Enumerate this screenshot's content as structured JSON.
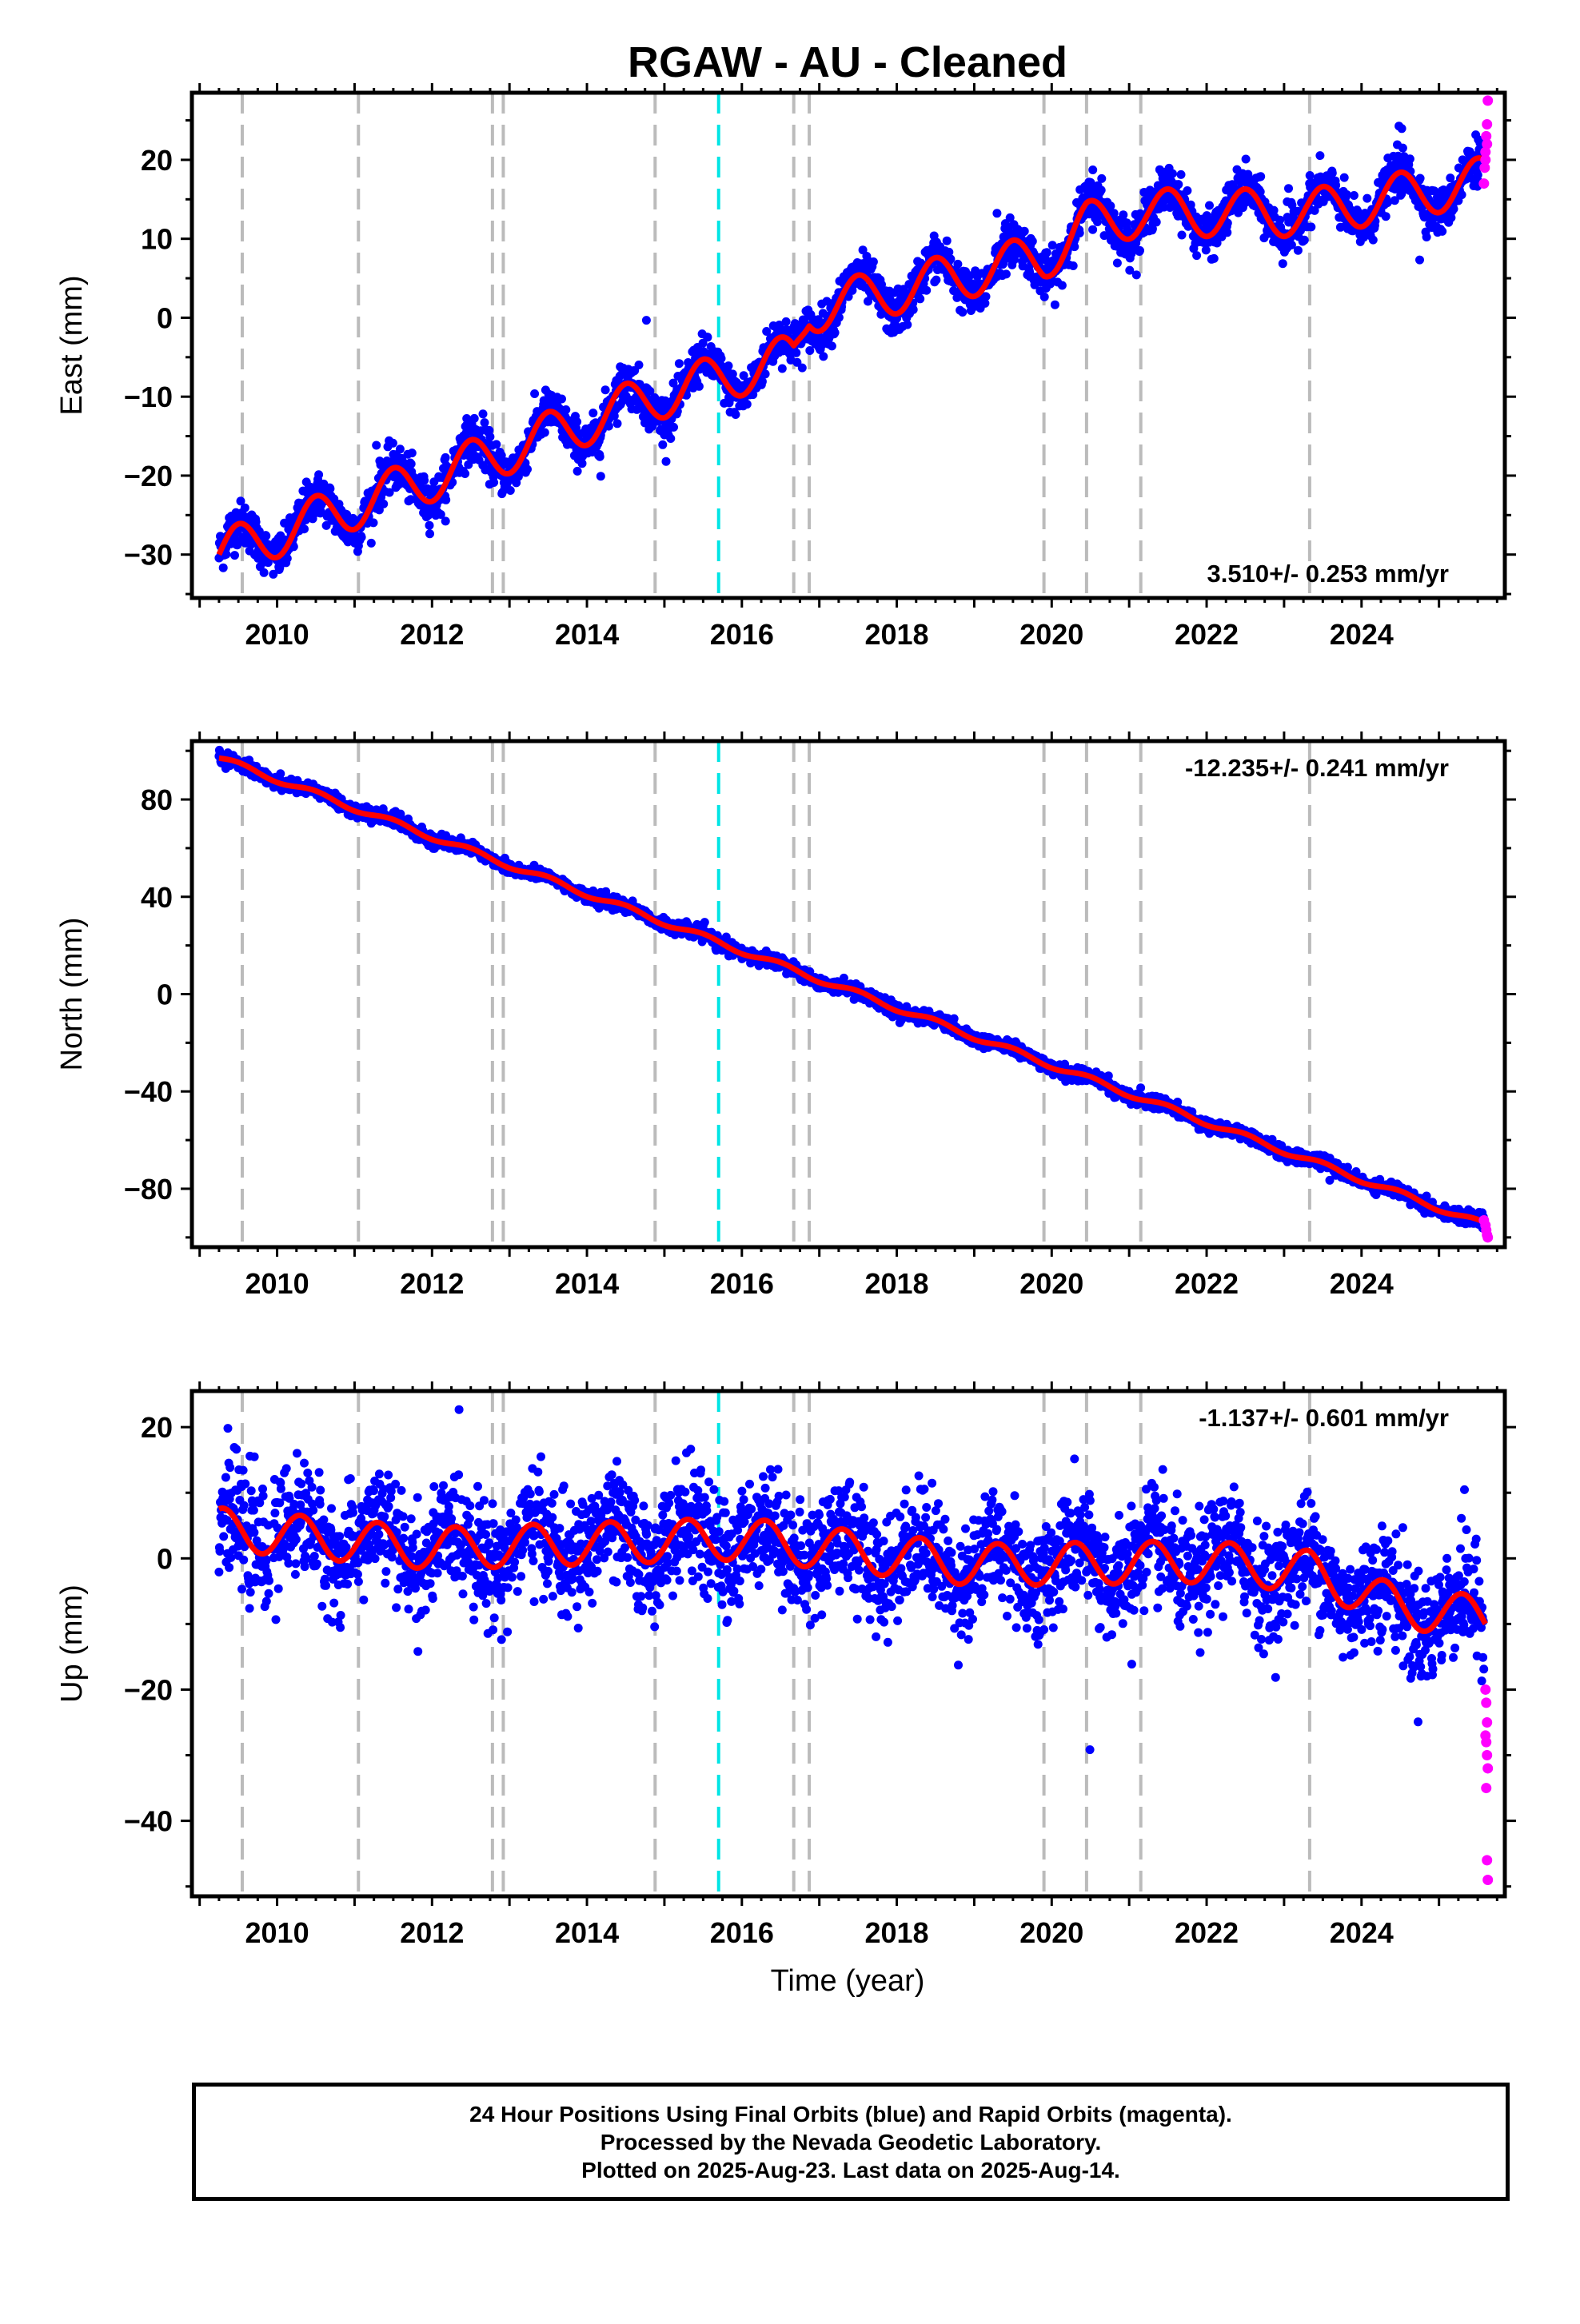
{
  "title": "RGAW  - AU - Cleaned",
  "xlabel": "Time (year)",
  "footer": {
    "line1": "24 Hour Positions Using Final Orbits (blue) and Rapid Orbits (magenta).",
    "line2": "Processed by the Nevada Geodetic Laboratory.",
    "line3": "Plotted on 2025-Aug-23. Last data on 2025-Aug-14."
  },
  "colors": {
    "final_orbits": "#0000ff",
    "rapid_orbits": "#ff00ff",
    "model": "#ff0000",
    "equipment_change": "#bbbbbb",
    "earthquake": "#00e5e5"
  },
  "chart_data": [
    {
      "type": "scatter",
      "component": "East",
      "ylabel": "East (mm)",
      "rate_label": "3.510+/- 0.253 mm/yr",
      "xlim": [
        2008.9,
        2025.85
      ],
      "ylim": [
        -35.5,
        28.5
      ],
      "xticks": [
        2010,
        2012,
        2014,
        2016,
        2018,
        2020,
        2022,
        2024
      ],
      "yticks": [
        -30,
        -20,
        -10,
        0,
        10,
        20
      ],
      "equipment_changes": [
        2009.55,
        2011.05,
        2012.78,
        2012.92,
        2014.88,
        2016.67,
        2016.87,
        2019.9,
        2020.45,
        2021.15,
        2023.33
      ],
      "earthquakes": [
        2015.7
      ],
      "model_anchors": [
        [
          2009.25,
          -30
        ],
        [
          2012.78,
          -17.5
        ],
        [
          2014.88,
          -10.0
        ],
        [
          2016.67,
          -5.0
        ],
        [
          2016.87,
          1.0
        ],
        [
          2019.9,
          7.7
        ],
        [
          2020.45,
          11.7
        ],
        [
          2021.15,
          13.3
        ],
        [
          2023.33,
          13.3
        ],
        [
          2025.6,
          17.4
        ]
      ],
      "seasonal": {
        "amplitude": 3.0,
        "phase": 0.25
      },
      "noise": 1.4,
      "rapid_orbits": [
        [
          2025.58,
          17
        ],
        [
          2025.59,
          19
        ],
        [
          2025.6,
          21
        ],
        [
          2025.61,
          23
        ],
        [
          2025.62,
          24.5
        ],
        [
          2025.63,
          27.5
        ],
        [
          2025.6,
          20
        ],
        [
          2025.62,
          22
        ]
      ]
    },
    {
      "type": "scatter",
      "component": "North",
      "ylabel": "North (mm)",
      "rate_label": "-12.235+/- 0.241 mm/yr",
      "xlim": [
        2008.9,
        2025.85
      ],
      "ylim": [
        -104,
        104
      ],
      "xticks": [
        2010,
        2012,
        2014,
        2016,
        2018,
        2020,
        2022,
        2024
      ],
      "yticks": [
        -80,
        -40,
        0,
        40,
        80
      ],
      "equipment_changes": [
        2009.55,
        2011.05,
        2012.78,
        2012.92,
        2014.88,
        2016.67,
        2016.87,
        2019.9,
        2020.45,
        2021.15,
        2023.33
      ],
      "earthquakes": [
        2015.7
      ],
      "model_anchors": [
        [
          2009.25,
          97
        ],
        [
          2025.6,
          -95
        ]
      ],
      "seasonal": {
        "amplitude": 1.2,
        "phase": 0.25
      },
      "noise": 1.3,
      "rapid_orbits": [
        [
          2025.58,
          -93
        ],
        [
          2025.6,
          -95
        ],
        [
          2025.61,
          -97
        ],
        [
          2025.62,
          -99
        ],
        [
          2025.63,
          -100
        ]
      ]
    },
    {
      "type": "scatter",
      "component": "Up",
      "ylabel": "Up (mm)",
      "rate_label": "-1.137+/- 0.601 mm/yr",
      "xlim": [
        2008.9,
        2025.85
      ],
      "ylim": [
        -51.5,
        25.5
      ],
      "xticks": [
        2010,
        2012,
        2014,
        2016,
        2018,
        2020,
        2022,
        2024
      ],
      "yticks": [
        -40,
        -20,
        0,
        20
      ],
      "equipment_changes": [
        2009.55,
        2011.05,
        2012.78,
        2012.92,
        2014.88,
        2016.67,
        2016.87,
        2019.9,
        2020.45,
        2021.15,
        2023.33
      ],
      "earthquakes": [
        2015.7
      ],
      "model_anchors": [
        [
          2009.25,
          4.5
        ],
        [
          2012.0,
          1.5
        ],
        [
          2016.0,
          3.0
        ],
        [
          2019.0,
          -1.0
        ],
        [
          2022.0,
          -0.5
        ],
        [
          2023.33,
          -2.0
        ],
        [
          2024.5,
          -7.5
        ],
        [
          2025.6,
          -9.0
        ]
      ],
      "seasonal": {
        "amplitude": 3.2,
        "phase": 0.05
      },
      "noise": 4.2,
      "rapid_orbits": [
        [
          2025.6,
          -20
        ],
        [
          2025.61,
          -22
        ],
        [
          2025.62,
          -25
        ],
        [
          2025.6,
          -27
        ],
        [
          2025.61,
          -28
        ],
        [
          2025.62,
          -30
        ],
        [
          2025.63,
          -32
        ],
        [
          2025.61,
          -35
        ],
        [
          2025.62,
          -46
        ],
        [
          2025.63,
          -49
        ]
      ]
    }
  ]
}
